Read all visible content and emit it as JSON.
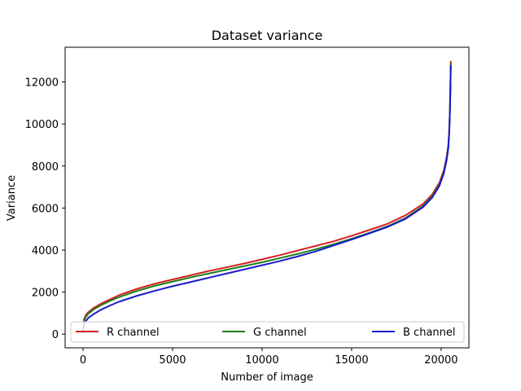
{
  "chart_data": {
    "type": "line",
    "title": "Dataset variance",
    "xlabel": "Number of image",
    "ylabel": "Variance",
    "xlim": [
      -1000,
      21550
    ],
    "ylim": [
      -650,
      13650
    ],
    "xticks": [
      0,
      5000,
      10000,
      15000,
      20000
    ],
    "yticks": [
      0,
      2000,
      4000,
      6000,
      8000,
      10000,
      12000
    ],
    "grid": false,
    "legend": {
      "placement": "lower-center",
      "columns": 3
    },
    "series": [
      {
        "name": "R channel",
        "color": "#d62020",
        "x": [
          0,
          50,
          150,
          300,
          600,
          1000,
          1500,
          2000,
          3000,
          4000,
          5000,
          6000,
          7000,
          8000,
          9000,
          10000,
          11000,
          12000,
          13000,
          14000,
          15000,
          16000,
          17000,
          18000,
          19000,
          19500,
          19900,
          20150,
          20300,
          20400,
          20450,
          20480,
          20500,
          20520,
          20530,
          20540
        ],
        "y": [
          80,
          700,
          900,
          1050,
          1250,
          1450,
          1650,
          1850,
          2150,
          2400,
          2600,
          2800,
          3000,
          3180,
          3360,
          3560,
          3760,
          3980,
          4200,
          4420,
          4680,
          4960,
          5250,
          5650,
          6200,
          6650,
          7200,
          7800,
          8400,
          9000,
          9700,
          10400,
          11100,
          11900,
          12500,
          13000
        ]
      },
      {
        "name": "G channel",
        "color": "#1a7f1a",
        "x": [
          0,
          50,
          150,
          300,
          600,
          1000,
          1500,
          2000,
          3000,
          4000,
          5000,
          6000,
          7000,
          8000,
          9000,
          10000,
          11000,
          12000,
          13000,
          14000,
          15000,
          16000,
          17000,
          18000,
          19000,
          19500,
          19900,
          20150,
          20300,
          20400,
          20450,
          20480,
          20500,
          20520,
          20530,
          20540
        ],
        "y": [
          60,
          620,
          820,
          980,
          1180,
          1380,
          1580,
          1760,
          2050,
          2300,
          2500,
          2700,
          2880,
          3060,
          3240,
          3420,
          3620,
          3820,
          4040,
          4280,
          4540,
          4820,
          5130,
          5520,
          6100,
          6550,
          7100,
          7700,
          8300,
          8900,
          9600,
          10300,
          11000,
          11800,
          12400,
          12900
        ]
      },
      {
        "name": "B channel",
        "color": "#1a1acc",
        "x": [
          0,
          50,
          150,
          300,
          600,
          1000,
          1500,
          2000,
          3000,
          4000,
          5000,
          6000,
          7000,
          8000,
          9000,
          10000,
          11000,
          12000,
          13000,
          14000,
          15000,
          16000,
          17000,
          18000,
          19000,
          19500,
          19900,
          20150,
          20300,
          20400,
          20450,
          20480,
          20500,
          20520,
          20530,
          20540
        ],
        "y": [
          40,
          420,
          620,
          780,
          960,
          1160,
          1360,
          1540,
          1820,
          2060,
          2280,
          2480,
          2680,
          2880,
          3080,
          3280,
          3480,
          3700,
          3940,
          4220,
          4500,
          4800,
          5100,
          5480,
          6050,
          6500,
          7050,
          7650,
          8250,
          8850,
          9550,
          10250,
          10950,
          11750,
          12350,
          12800
        ]
      }
    ]
  }
}
